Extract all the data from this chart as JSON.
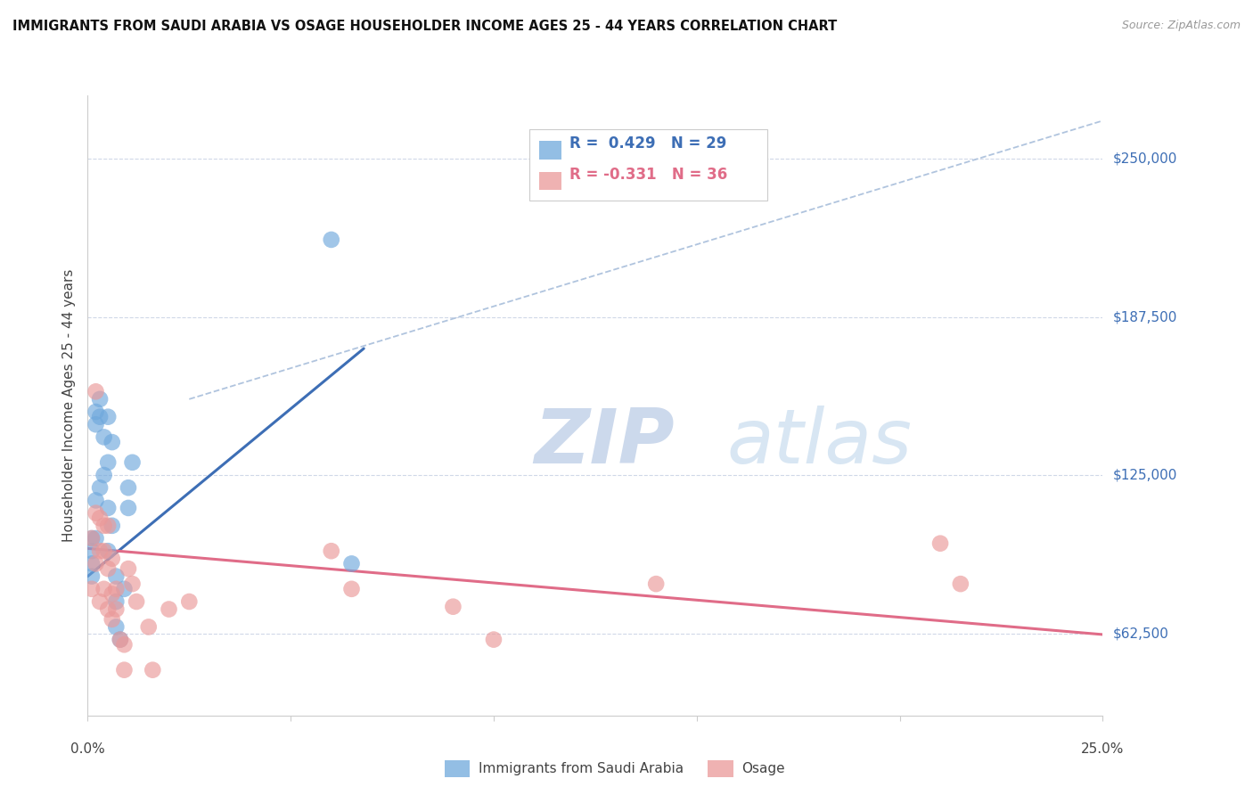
{
  "title": "IMMIGRANTS FROM SAUDI ARABIA VS OSAGE HOUSEHOLDER INCOME AGES 25 - 44 YEARS CORRELATION CHART",
  "source": "Source: ZipAtlas.com",
  "ylabel": "Householder Income Ages 25 - 44 years",
  "y_ticks": [
    62500,
    125000,
    187500,
    250000
  ],
  "y_tick_labels": [
    "$62,500",
    "$125,000",
    "$187,500",
    "$250,000"
  ],
  "x_range": [
    0.0,
    0.25
  ],
  "y_range": [
    30000,
    275000
  ],
  "blue_R": 0.429,
  "blue_N": 29,
  "pink_R": -0.331,
  "pink_N": 36,
  "blue_color": "#6fa8dc",
  "pink_color": "#ea9999",
  "blue_line_color": "#3d6eb5",
  "pink_line_color": "#e06c88",
  "dashed_line_color": "#b0c4de",
  "background_color": "#ffffff",
  "grid_color": "#d0d8e8",
  "legend_blue_label": "Immigrants from Saudi Arabia",
  "legend_pink_label": "Osage",
  "blue_scatter_x": [
    0.001,
    0.001,
    0.001,
    0.001,
    0.002,
    0.002,
    0.002,
    0.002,
    0.003,
    0.003,
    0.003,
    0.004,
    0.004,
    0.005,
    0.005,
    0.005,
    0.005,
    0.006,
    0.006,
    0.007,
    0.007,
    0.007,
    0.008,
    0.009,
    0.01,
    0.01,
    0.011,
    0.06,
    0.065
  ],
  "blue_scatter_y": [
    100000,
    95000,
    90000,
    85000,
    150000,
    145000,
    115000,
    100000,
    155000,
    148000,
    120000,
    140000,
    125000,
    148000,
    130000,
    112000,
    95000,
    138000,
    105000,
    85000,
    75000,
    65000,
    60000,
    80000,
    120000,
    112000,
    130000,
    218000,
    90000
  ],
  "pink_scatter_x": [
    0.001,
    0.001,
    0.002,
    0.002,
    0.002,
    0.003,
    0.003,
    0.003,
    0.004,
    0.004,
    0.004,
    0.005,
    0.005,
    0.005,
    0.006,
    0.006,
    0.006,
    0.007,
    0.007,
    0.008,
    0.009,
    0.009,
    0.01,
    0.011,
    0.012,
    0.015,
    0.016,
    0.02,
    0.025,
    0.06,
    0.065,
    0.09,
    0.1,
    0.14,
    0.21,
    0.215
  ],
  "pink_scatter_y": [
    100000,
    80000,
    158000,
    110000,
    90000,
    108000,
    95000,
    75000,
    105000,
    95000,
    80000,
    105000,
    88000,
    72000,
    92000,
    78000,
    68000,
    80000,
    72000,
    60000,
    58000,
    48000,
    88000,
    82000,
    75000,
    65000,
    48000,
    72000,
    75000,
    95000,
    80000,
    73000,
    60000,
    82000,
    98000,
    82000
  ],
  "blue_line_x": [
    0.0,
    0.068
  ],
  "blue_line_y": [
    85000,
    175000
  ],
  "pink_line_x": [
    0.0,
    0.25
  ],
  "pink_line_y": [
    96000,
    62000
  ],
  "dashed_line_x": [
    0.025,
    0.25
  ],
  "dashed_line_y": [
    155000,
    265000
  ],
  "watermark_zip": "ZIP",
  "watermark_atlas": "atlas"
}
